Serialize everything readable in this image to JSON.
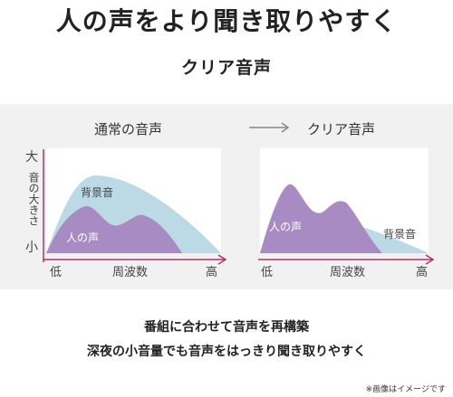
{
  "title": "人の声をより聞き取りやすく",
  "subtitle": "クリア音声",
  "comparison": {
    "left_label": "通常の音声",
    "right_label": "クリア音声"
  },
  "axes": {
    "y_top": "大",
    "y_label": "音の大きさ",
    "y_bottom": "小",
    "x_low": "低",
    "x_label": "周波数",
    "x_high": "高"
  },
  "legend": {
    "background": "背景音",
    "voice": "人の声"
  },
  "description": {
    "line1": "番組に合わせて音声を再構築",
    "line2": "深夜の小音量でも音声をはっきり聞き取りやすく"
  },
  "note": "※画像はイメージです",
  "colors": {
    "background_sound": "#bcd9e6",
    "voice": "#a98bc3",
    "axis": "#b0336b"
  }
}
